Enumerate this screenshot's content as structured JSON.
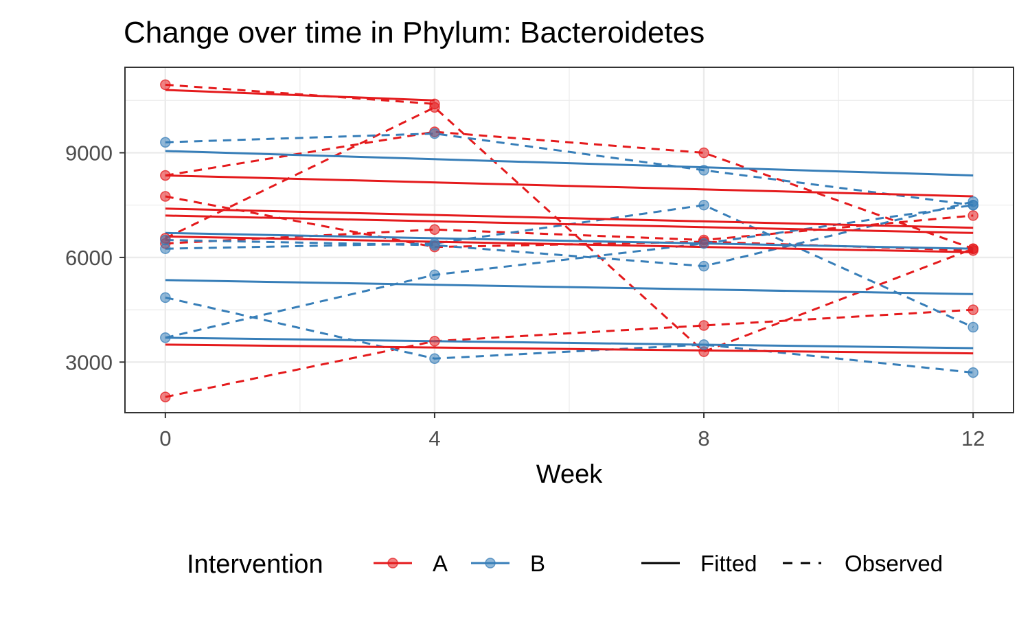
{
  "chart_data": {
    "type": "line",
    "title": "Change over time in Phylum: Bacteroidetes",
    "xlabel": "Week",
    "ylabel": "",
    "x_ticks": [
      0,
      4,
      8,
      12
    ],
    "y_ticks": [
      3000,
      6000,
      9000
    ],
    "xlim": [
      -0.6,
      12.6
    ],
    "ylim": [
      1550,
      11450
    ],
    "grid": true,
    "legend_position": "bottom",
    "colors": {
      "A": "#e41a1c",
      "B": "#377eb8"
    },
    "legend": {
      "color_title": "Intervention",
      "color_items": [
        "A",
        "B"
      ],
      "linetype_items": [
        "Fitted",
        "Observed"
      ]
    },
    "series": [
      {
        "group": "A",
        "type": "Observed",
        "x": [
          0,
          4
        ],
        "y": [
          10950,
          10400
        ]
      },
      {
        "group": "A",
        "type": "Observed",
        "x": [
          0,
          4,
          8,
          12
        ],
        "y": [
          8350,
          9600,
          9000,
          6250
        ]
      },
      {
        "group": "A",
        "type": "Observed",
        "x": [
          0,
          4,
          8,
          12
        ],
        "y": [
          7750,
          6300,
          6450,
          6200
        ]
      },
      {
        "group": "A",
        "type": "Observed",
        "x": [
          0,
          4,
          8,
          12
        ],
        "y": [
          6550,
          10300,
          3300,
          6250
        ]
      },
      {
        "group": "A",
        "type": "Observed",
        "x": [
          0,
          4,
          8,
          12
        ],
        "y": [
          6400,
          6800,
          6500,
          7200
        ]
      },
      {
        "group": "A",
        "type": "Observed",
        "x": [
          0,
          4,
          8,
          12
        ],
        "y": [
          2000,
          3600,
          4050,
          4500
        ]
      },
      {
        "group": "B",
        "type": "Observed",
        "x": [
          0,
          4,
          8,
          12
        ],
        "y": [
          9300,
          9550,
          8500,
          7500
        ]
      },
      {
        "group": "B",
        "type": "Observed",
        "x": [
          0,
          4,
          8,
          12
        ],
        "y": [
          6500,
          6350,
          5750,
          7600
        ]
      },
      {
        "group": "B",
        "type": "Observed",
        "x": [
          0,
          4,
          8,
          12
        ],
        "y": [
          6250,
          6400,
          7500,
          4000
        ]
      },
      {
        "group": "B",
        "type": "Observed",
        "x": [
          0,
          4,
          8,
          12
        ],
        "y": [
          4850,
          3100,
          3500,
          2700
        ]
      },
      {
        "group": "B",
        "type": "Observed",
        "x": [
          0,
          4,
          8,
          12
        ],
        "y": [
          3700,
          5500,
          6400,
          7500
        ]
      },
      {
        "group": "A",
        "type": "Fitted",
        "x": [
          0,
          4
        ],
        "y": [
          10800,
          10500
        ]
      },
      {
        "group": "A",
        "type": "Fitted",
        "x": [
          0,
          12
        ],
        "y": [
          8350,
          7750
        ]
      },
      {
        "group": "A",
        "type": "Fitted",
        "x": [
          0,
          12
        ],
        "y": [
          7400,
          6850
        ]
      },
      {
        "group": "A",
        "type": "Fitted",
        "x": [
          0,
          12
        ],
        "y": [
          7200,
          6700
        ]
      },
      {
        "group": "A",
        "type": "Fitted",
        "x": [
          0,
          12
        ],
        "y": [
          6600,
          6150
        ]
      },
      {
        "group": "A",
        "type": "Fitted",
        "x": [
          0,
          12
        ],
        "y": [
          3500,
          3250
        ]
      },
      {
        "group": "B",
        "type": "Fitted",
        "x": [
          0,
          12
        ],
        "y": [
          9050,
          8350
        ]
      },
      {
        "group": "B",
        "type": "Fitted",
        "x": [
          0,
          12
        ],
        "y": [
          6700,
          6250
        ]
      },
      {
        "group": "B",
        "type": "Fitted",
        "x": [
          0,
          12
        ],
        "y": [
          5350,
          4950
        ]
      },
      {
        "group": "B",
        "type": "Fitted",
        "x": [
          0,
          12
        ],
        "y": [
          3700,
          3400
        ]
      }
    ]
  }
}
